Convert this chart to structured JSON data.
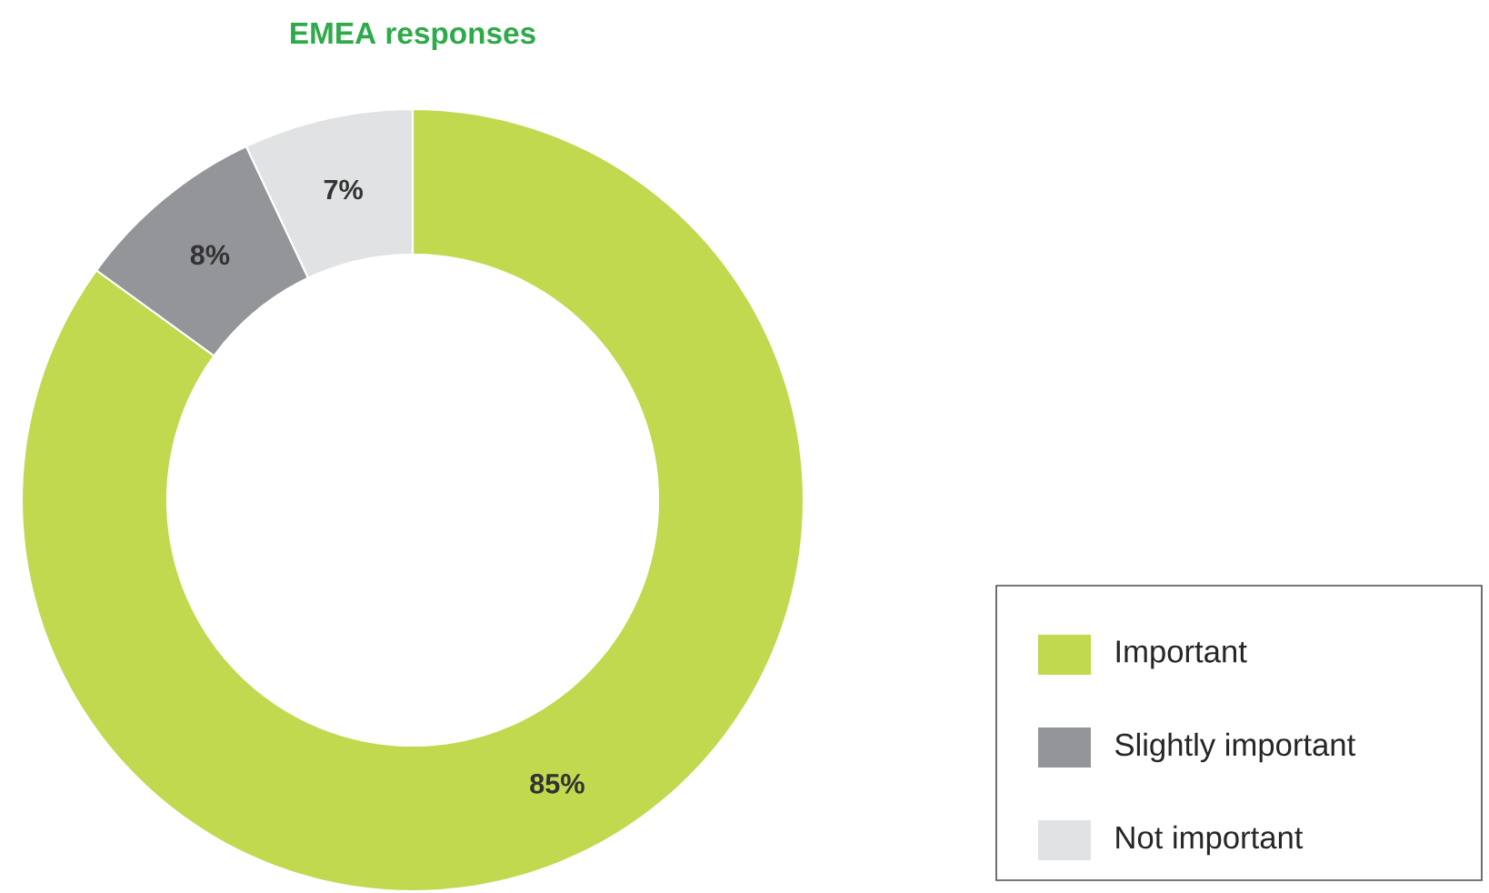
{
  "chart_data": {
    "type": "donut",
    "title": "EMEA responses",
    "categories": [
      "Important",
      "Slightly important",
      "Not important"
    ],
    "values": [
      85,
      8,
      7
    ],
    "colors": [
      "#c0d94f",
      "#939598",
      "#e1e2e3"
    ],
    "value_labels": [
      "85%",
      "8%",
      "7%"
    ],
    "legend": "bottom right"
  }
}
